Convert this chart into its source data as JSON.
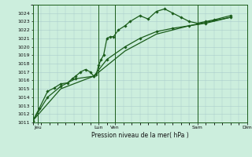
{
  "xlabel": "Pression niveau de la mer( hPa )",
  "bg_color": "#cceedd",
  "grid_color": "#aacccc",
  "line_color": "#1a5c1a",
  "dark_line_color": "#1a5c1a",
  "ylim": [
    1011,
    1025
  ],
  "yticks": [
    1011,
    1012,
    1013,
    1014,
    1015,
    1016,
    1017,
    1018,
    1019,
    1020,
    1021,
    1022,
    1023,
    1024
  ],
  "xlim": [
    0,
    13
  ],
  "day_ticks_x": [
    0.3,
    4.0,
    5.0,
    10.0,
    13.0
  ],
  "day_labels": [
    "Jeu",
    "Lun",
    "Ven",
    "Sam",
    "Dim"
  ],
  "vlines_x": [
    0.3,
    4.0,
    5.0,
    10.0,
    13.0
  ],
  "series1": [
    [
      0.0,
      1011.2
    ],
    [
      0.4,
      1012.7
    ],
    [
      0.9,
      1014.7
    ],
    [
      1.3,
      1015.1
    ],
    [
      1.7,
      1015.6
    ],
    [
      2.1,
      1015.7
    ],
    [
      2.4,
      1016.2
    ],
    [
      2.6,
      1016.5
    ],
    [
      2.9,
      1017.0
    ],
    [
      3.2,
      1017.3
    ],
    [
      3.5,
      1017.0
    ],
    [
      3.7,
      1016.5
    ],
    [
      3.85,
      1016.7
    ],
    [
      4.0,
      1017.8
    ],
    [
      4.15,
      1018.5
    ],
    [
      4.3,
      1019.0
    ],
    [
      4.5,
      1021.0
    ],
    [
      4.7,
      1021.2
    ],
    [
      4.9,
      1021.2
    ],
    [
      5.2,
      1022.0
    ],
    [
      5.6,
      1022.5
    ],
    [
      5.9,
      1023.0
    ],
    [
      6.5,
      1023.7
    ],
    [
      7.0,
      1023.3
    ],
    [
      7.5,
      1024.2
    ],
    [
      8.0,
      1024.5
    ],
    [
      8.5,
      1024.0
    ],
    [
      9.0,
      1023.5
    ],
    [
      9.5,
      1023.0
    ],
    [
      10.0,
      1022.8
    ],
    [
      10.5,
      1023.0
    ],
    [
      11.0,
      1023.2
    ],
    [
      12.0,
      1023.7
    ]
  ],
  "series2": [
    [
      0.0,
      1011.2
    ],
    [
      0.9,
      1014.0
    ],
    [
      1.7,
      1015.3
    ],
    [
      2.6,
      1016.2
    ],
    [
      3.7,
      1016.5
    ],
    [
      4.5,
      1018.5
    ],
    [
      5.6,
      1020.0
    ],
    [
      6.5,
      1021.0
    ],
    [
      7.5,
      1021.8
    ],
    [
      8.5,
      1022.2
    ],
    [
      9.5,
      1022.5
    ],
    [
      10.5,
      1022.8
    ],
    [
      12.0,
      1023.5
    ]
  ],
  "series3": [
    [
      0.0,
      1011.2
    ],
    [
      1.7,
      1015.0
    ],
    [
      3.7,
      1016.5
    ],
    [
      5.6,
      1019.5
    ],
    [
      7.5,
      1021.5
    ],
    [
      9.5,
      1022.5
    ],
    [
      12.0,
      1023.5
    ]
  ]
}
